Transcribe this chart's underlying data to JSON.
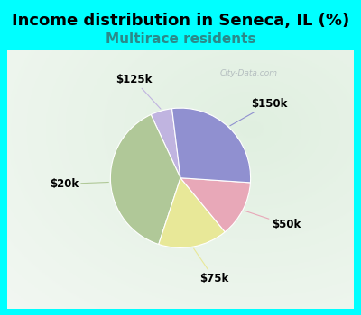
{
  "title": "Income distribution in Seneca, IL (%)",
  "subtitle": "Multirace residents",
  "title_fontsize": 13,
  "subtitle_fontsize": 11,
  "title_color": "#000000",
  "subtitle_color": "#2a8a8a",
  "background_color": "#00FFFF",
  "watermark": "City-Data.com",
  "label_fontsize": 8.5,
  "startangle": 97,
  "slices": [
    {
      "label": "$125k",
      "value": 5,
      "color": "#c0b4e0"
    },
    {
      "label": "$20k",
      "value": 38,
      "color": "#b0c898"
    },
    {
      "label": "$75k",
      "value": 16,
      "color": "#e8e898"
    },
    {
      "label": "$50k",
      "value": 13,
      "color": "#e8a8b8"
    },
    {
      "label": "$150k",
      "value": 28,
      "color": "#9090d0"
    }
  ]
}
